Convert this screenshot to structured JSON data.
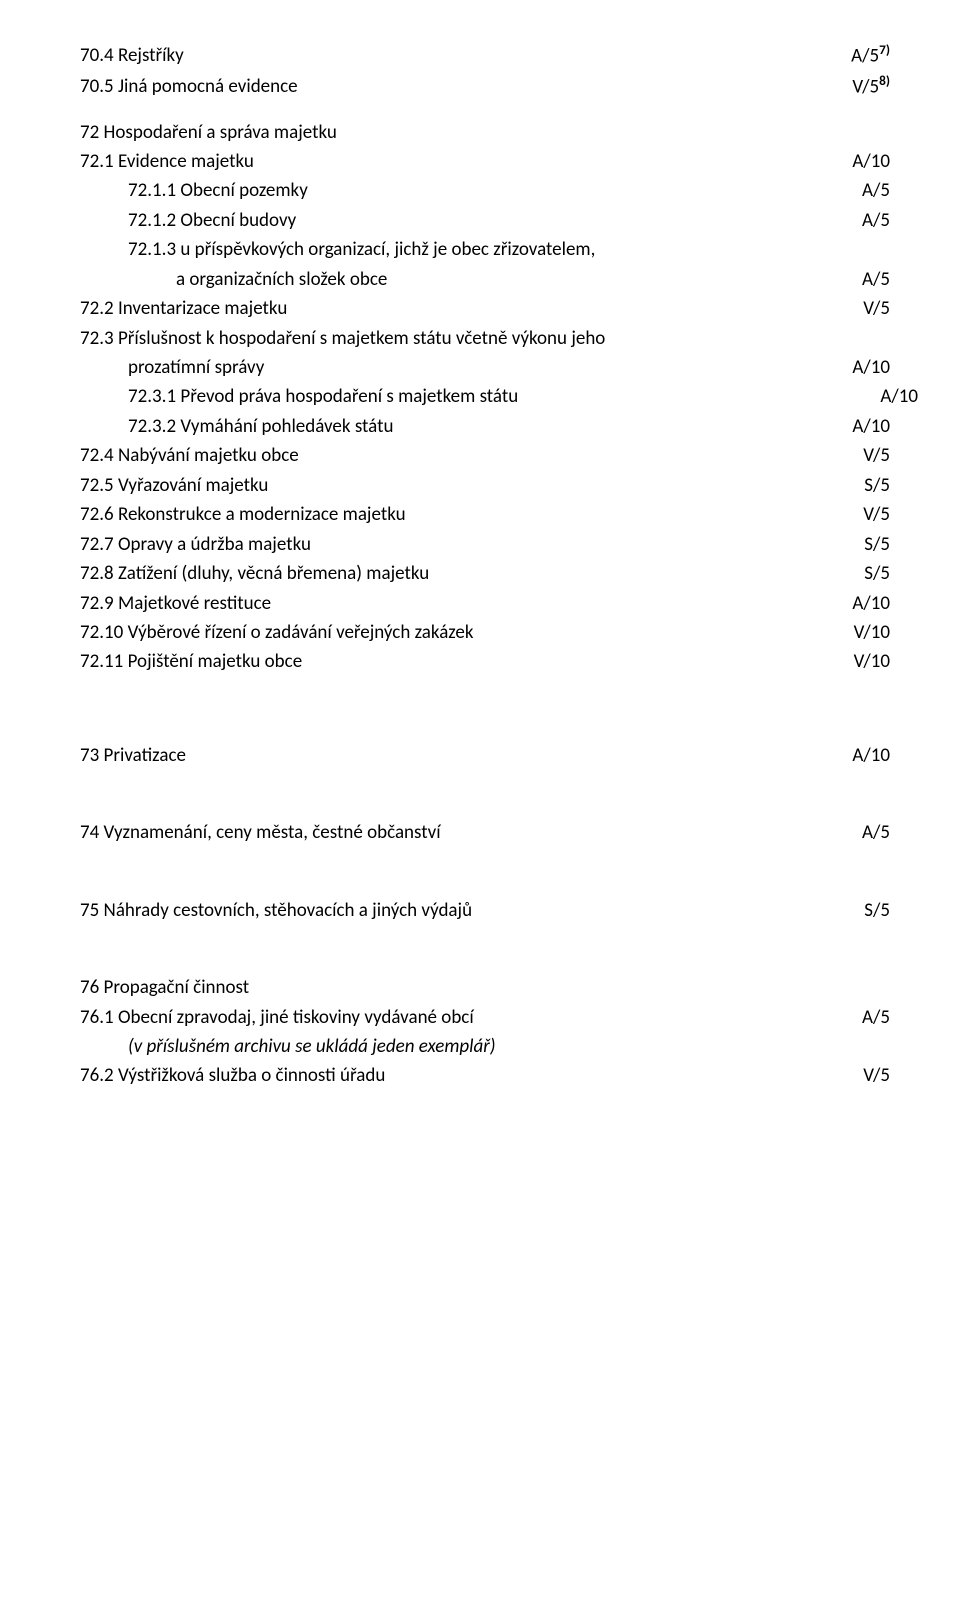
{
  "font": {
    "family": "Calibri",
    "size_pt": 14,
    "color": "#000000"
  },
  "background_color": "#ffffff",
  "rows": {
    "r1": {
      "label": "70.4 Rejstříky",
      "value": "A/5",
      "sup": "7)"
    },
    "r2": {
      "label": "70.5 Jiná pomocná evidence",
      "value": "V/5",
      "sup": "8)"
    },
    "r3": {
      "label": "72 Hospodaření a správa majetku"
    },
    "r4": {
      "label": "72.1 Evidence majetku",
      "value": "A/10"
    },
    "r5": {
      "label": "72.1.1 Obecní pozemky",
      "value": "A/5"
    },
    "r6": {
      "label": "72.1.2 Obecní budovy",
      "value": "A/5"
    },
    "r7": {
      "label": "72.1.3 u příspěvkových organizací, jichž je obec zřizovatelem,"
    },
    "r8": {
      "label": "a organizačních složek obce",
      "value": "A/5"
    },
    "r9": {
      "label": "72.2 Inventarizace majetku",
      "value": "V/5"
    },
    "r10": {
      "label": "72.3 Příslušnost k hospodaření s majetkem státu včetně výkonu jeho"
    },
    "r11": {
      "label": "prozatímní správy",
      "value": "A/10"
    },
    "r12": {
      "label": "72.3.1 Převod práva hospodaření s majetkem státu",
      "value": "A/10"
    },
    "r13": {
      "label": "72.3.2 Vymáhání pohledávek státu",
      "value": "A/10"
    },
    "r14": {
      "label": "72.4 Nabývání majetku obce",
      "value": "V/5"
    },
    "r15": {
      "label": "72.5 Vyřazování majetku",
      "value": "S/5"
    },
    "r16": {
      "label": "72.6 Rekonstrukce a modernizace majetku",
      "value": "V/5"
    },
    "r17": {
      "label": "72.7 Opravy a údržba majetku",
      "value": "S/5"
    },
    "r18": {
      "label": "72.8 Zatížení (dluhy, věcná břemena) majetku",
      "value": "S/5"
    },
    "r19": {
      "label": "72.9 Majetkové restituce",
      "value": "A/10"
    },
    "r20": {
      "label": "72.10 Výběrové řízení o zadávání veřejných zakázek",
      "value": "V/10"
    },
    "r21": {
      "label": "72.11 Pojištění majetku obce",
      "value": "V/10"
    },
    "r22": {
      "label": "73 Privatizace",
      "value": "A/10"
    },
    "r23": {
      "label": "74 Vyznamenání, ceny města, čestné občanství",
      "value": "A/5"
    },
    "r24": {
      "label": "75 Náhrady cestovních, stěhovacích a jiných výdajů",
      "value": "S/5"
    },
    "r25": {
      "label": "76 Propagační činnost"
    },
    "r26": {
      "label": "76.1 Obecní zpravodaj, jiné tiskoviny vydávané obcí",
      "value": "A/5"
    },
    "r27": {
      "label": "(v příslušném archivu se ukládá jeden exemplář)"
    },
    "r28": {
      "label": "76.2 Výstřižková služba o činnosti úřadu",
      "value": "V/5"
    }
  }
}
